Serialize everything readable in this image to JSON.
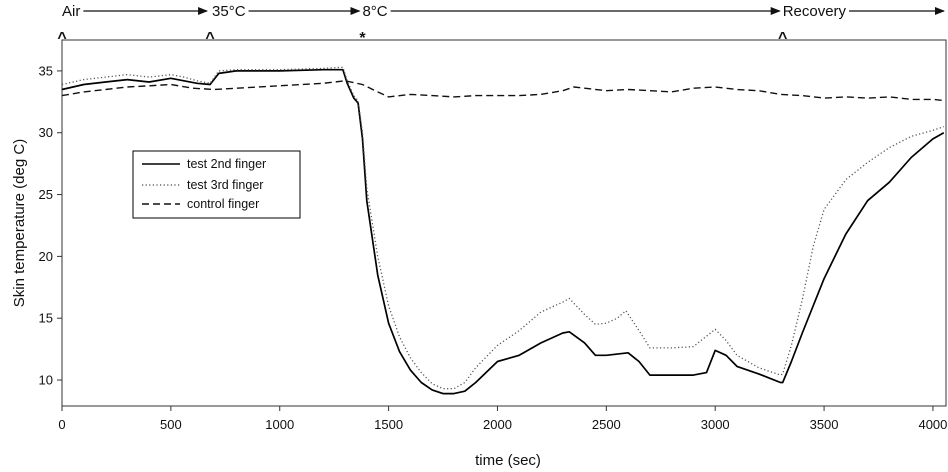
{
  "chart_data": {
    "type": "line",
    "xlabel": "time (sec)",
    "ylabel": "Skin temperature (deg C)",
    "xlim": [
      0,
      4060
    ],
    "ylim": [
      7.9,
      37.5
    ],
    "xticks": [
      0,
      500,
      1000,
      1500,
      2000,
      2500,
      3000,
      3500,
      4000
    ],
    "yticks": [
      10,
      15,
      20,
      25,
      30,
      35
    ],
    "grid": false,
    "legend_position": "center-left",
    "phases": [
      {
        "label": "Air",
        "x": 0,
        "marker": "^"
      },
      {
        "label": "35°C",
        "x": 680,
        "marker": "^"
      },
      {
        "label": "8°C",
        "x": 1380,
        "marker": "*"
      },
      {
        "label": "Recovery",
        "x": 3310,
        "marker": "^"
      }
    ],
    "series": [
      {
        "name": "test 2nd finger",
        "dash": "solid",
        "x": [
          0,
          100,
          200,
          300,
          400,
          500,
          560,
          620,
          680,
          720,
          800,
          1000,
          1200,
          1290,
          1310,
          1340,
          1360,
          1380,
          1400,
          1450,
          1500,
          1550,
          1600,
          1650,
          1700,
          1750,
          1800,
          1850,
          1900,
          2000,
          2100,
          2200,
          2300,
          2330,
          2400,
          2450,
          2500,
          2600,
          2650,
          2700,
          2800,
          2900,
          2960,
          3000,
          3050,
          3100,
          3200,
          3300,
          3310,
          3350,
          3400,
          3500,
          3600,
          3700,
          3800,
          3900,
          4000,
          4050
        ],
        "y": [
          33.5,
          33.9,
          34.1,
          34.3,
          34.1,
          34.4,
          34.2,
          34.0,
          33.9,
          34.8,
          35.0,
          35.0,
          35.1,
          35.1,
          34.0,
          32.8,
          32.4,
          29.5,
          24.5,
          18.5,
          14.6,
          12.3,
          10.8,
          9.8,
          9.2,
          8.9,
          8.9,
          9.1,
          9.8,
          11.5,
          12.0,
          13.0,
          13.8,
          13.9,
          13.0,
          12.0,
          12.0,
          12.2,
          11.5,
          10.4,
          10.4,
          10.4,
          10.6,
          12.4,
          12.0,
          11.1,
          10.5,
          9.8,
          9.8,
          11.5,
          13.8,
          18.2,
          21.8,
          24.5,
          26.0,
          28.0,
          29.5,
          30.0
        ]
      },
      {
        "name": "test 3rd finger",
        "dash": "dotted",
        "x": [
          0,
          100,
          200,
          300,
          400,
          500,
          560,
          620,
          680,
          720,
          800,
          1000,
          1200,
          1290,
          1310,
          1340,
          1360,
          1380,
          1400,
          1450,
          1500,
          1550,
          1600,
          1650,
          1700,
          1750,
          1800,
          1850,
          1900,
          2000,
          2100,
          2200,
          2300,
          2330,
          2400,
          2450,
          2500,
          2550,
          2590,
          2650,
          2700,
          2800,
          2900,
          3000,
          3050,
          3100,
          3200,
          3300,
          3310,
          3350,
          3400,
          3450,
          3500,
          3600,
          3700,
          3800,
          3900,
          4000,
          4050
        ],
        "y": [
          33.9,
          34.3,
          34.5,
          34.7,
          34.5,
          34.7,
          34.5,
          34.2,
          34.0,
          35.0,
          35.1,
          35.1,
          35.2,
          35.3,
          34.2,
          33.0,
          32.6,
          30.0,
          25.5,
          20.0,
          16.0,
          13.5,
          11.8,
          10.6,
          9.7,
          9.3,
          9.3,
          9.8,
          11.0,
          12.8,
          14.0,
          15.5,
          16.3,
          16.6,
          15.3,
          14.5,
          14.6,
          15.0,
          15.6,
          14.0,
          12.6,
          12.6,
          12.7,
          14.1,
          13.2,
          12.0,
          11.0,
          10.4,
          10.5,
          12.8,
          16.5,
          20.8,
          23.8,
          26.2,
          27.6,
          28.8,
          29.7,
          30.2,
          30.5
        ]
      },
      {
        "name": "control finger",
        "dash": "dashed",
        "x": [
          0,
          100,
          200,
          300,
          400,
          500,
          600,
          700,
          800,
          1000,
          1100,
          1200,
          1300,
          1380,
          1450,
          1500,
          1600,
          1700,
          1800,
          1900,
          2000,
          2100,
          2200,
          2300,
          2350,
          2400,
          2500,
          2600,
          2700,
          2800,
          2900,
          3000,
          3100,
          3200,
          3300,
          3400,
          3500,
          3600,
          3700,
          3800,
          3900,
          4000,
          4050
        ],
        "y": [
          33.0,
          33.3,
          33.5,
          33.7,
          33.8,
          33.9,
          33.6,
          33.5,
          33.6,
          33.8,
          33.9,
          34.0,
          34.2,
          33.9,
          33.3,
          32.9,
          33.1,
          33.0,
          32.9,
          33.0,
          33.0,
          33.0,
          33.1,
          33.4,
          33.7,
          33.6,
          33.4,
          33.5,
          33.4,
          33.3,
          33.6,
          33.7,
          33.5,
          33.4,
          33.1,
          33.0,
          32.8,
          32.9,
          32.8,
          32.9,
          32.7,
          32.7,
          32.6
        ]
      }
    ]
  }
}
